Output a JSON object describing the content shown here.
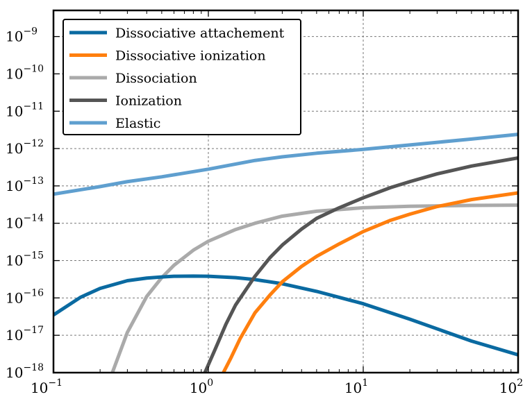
{
  "chart_data": {
    "type": "line",
    "x_scale": "log",
    "y_scale": "log",
    "xlim": [
      0.1,
      100
    ],
    "ylim": [
      1e-18,
      5e-09
    ],
    "grid": true,
    "legend_position": "top-left",
    "xticks": [
      {
        "value": 0.1,
        "base": "10",
        "exp": "−1"
      },
      {
        "value": 1,
        "base": "10",
        "exp": "0"
      },
      {
        "value": 10,
        "base": "10",
        "exp": "1"
      },
      {
        "value": 100,
        "base": "10",
        "exp": "2"
      }
    ],
    "yticks": [
      {
        "value": 1e-09,
        "base": "10",
        "exp": "−9"
      },
      {
        "value": 1e-10,
        "base": "10",
        "exp": "−10"
      },
      {
        "value": 1e-11,
        "base": "10",
        "exp": "−11"
      },
      {
        "value": 1e-12,
        "base": "10",
        "exp": "−12"
      },
      {
        "value": 1e-13,
        "base": "10",
        "exp": "−13"
      },
      {
        "value": 1e-14,
        "base": "10",
        "exp": "−14"
      },
      {
        "value": 1e-15,
        "base": "10",
        "exp": "−15"
      },
      {
        "value": 1e-16,
        "base": "10",
        "exp": "−16"
      },
      {
        "value": 1e-17,
        "base": "10",
        "exp": "−17"
      },
      {
        "value": 1e-18,
        "base": "10",
        "exp": "−18"
      }
    ],
    "series": [
      {
        "name": "Dissociative attachement",
        "color": "#0a6aa1",
        "x": [
          0.1,
          0.15,
          0.2,
          0.3,
          0.4,
          0.5,
          0.6,
          0.8,
          1.0,
          1.5,
          2,
          3,
          5,
          10,
          20,
          50,
          100
        ],
        "y": [
          3.5e-17,
          1.05e-16,
          1.8e-16,
          2.9e-16,
          3.4e-16,
          3.65e-16,
          3.8e-16,
          3.85e-16,
          3.8e-16,
          3.5e-16,
          3.1e-16,
          2.4e-16,
          1.5e-16,
          7e-17,
          2.7e-17,
          7e-18,
          3e-18
        ]
      },
      {
        "name": "Dissociative ionization",
        "color": "#ff7f0e",
        "x": [
          1.25,
          1.4,
          1.6,
          2,
          2.5,
          3,
          4,
          5,
          7,
          10,
          15,
          20,
          30,
          50,
          100
        ],
        "y": [
          1e-18,
          2.5e-18,
          8e-18,
          4e-17,
          1.2e-16,
          2.7e-16,
          7e-16,
          1.3e-15,
          2.8e-15,
          6e-15,
          1.2e-14,
          1.75e-14,
          2.8e-14,
          4.3e-14,
          6.5e-14
        ]
      },
      {
        "name": "Dissociation",
        "color": "#aaaaaa",
        "x": [
          0.24,
          0.3,
          0.4,
          0.5,
          0.6,
          0.8,
          1.0,
          1.5,
          2,
          3,
          5,
          10,
          20,
          50,
          100
        ],
        "y": [
          1e-18,
          1.2e-17,
          1.1e-16,
          3.5e-16,
          7.5e-16,
          1.9e-15,
          3.3e-15,
          6.8e-15,
          1e-14,
          1.55e-14,
          2.1e-14,
          2.6e-14,
          2.85e-14,
          3e-14,
          3.05e-14
        ]
      },
      {
        "name": "Ionization",
        "color": "#555555",
        "x": [
          0.95,
          1.1,
          1.3,
          1.5,
          2,
          2.5,
          3,
          4,
          5,
          7,
          10,
          15,
          20,
          30,
          50,
          100
        ],
        "y": [
          1e-18,
          4e-18,
          2e-17,
          6.5e-17,
          3.8e-16,
          1.2e-15,
          2.6e-15,
          7e-15,
          1.35e-14,
          2.6e-14,
          4.8e-14,
          9e-14,
          1.3e-13,
          2.1e-13,
          3.4e-13,
          5.6e-13
        ]
      },
      {
        "name": "Elastic",
        "color": "#5f9fcf",
        "x": [
          0.1,
          0.2,
          0.3,
          0.5,
          1,
          2,
          3,
          5,
          10,
          20,
          50,
          100
        ],
        "y": [
          6e-14,
          9.6e-14,
          1.3e-13,
          1.75e-13,
          2.8e-13,
          4.8e-13,
          6e-13,
          7.5e-13,
          9.5e-13,
          1.25e-12,
          1.8e-12,
          2.4e-12
        ]
      }
    ]
  }
}
